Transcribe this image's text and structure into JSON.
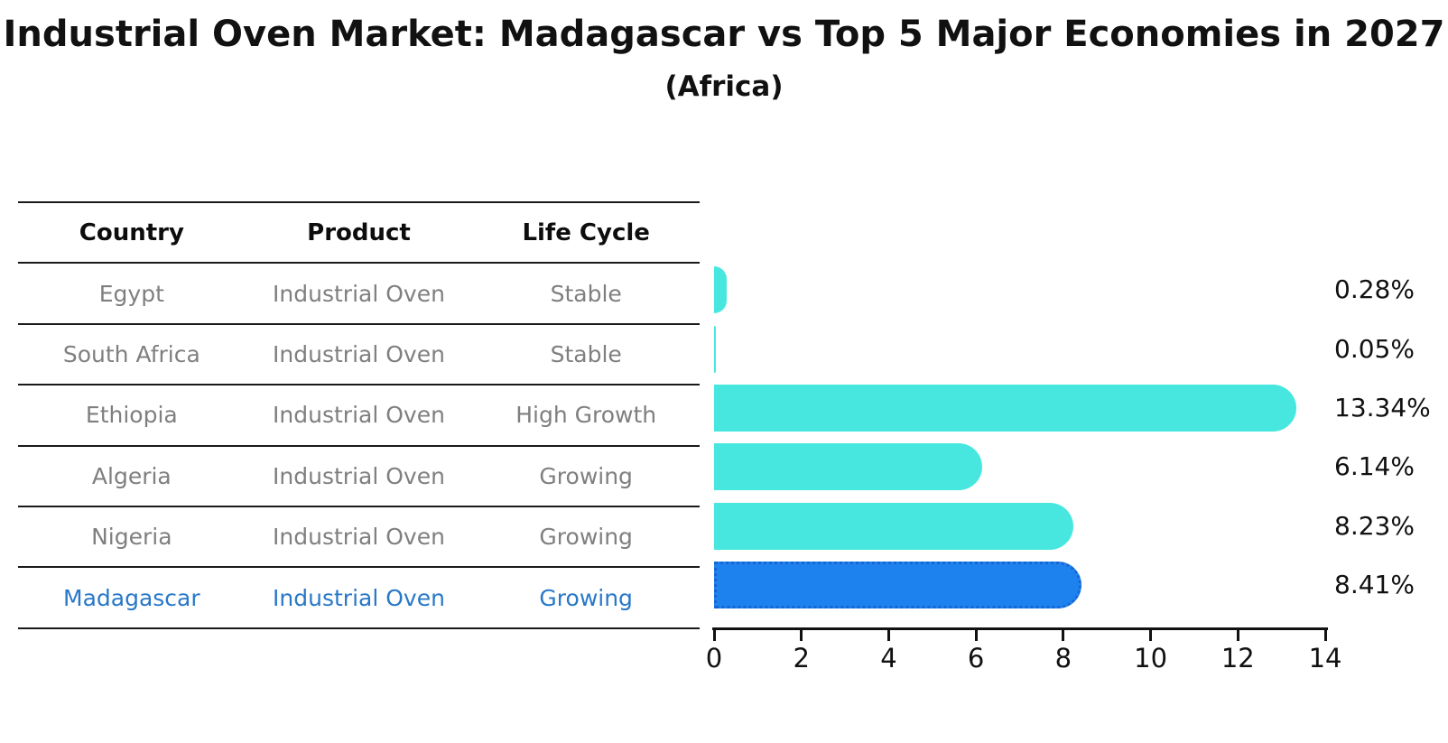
{
  "title": "Industrial Oven Market: Madagascar vs Top 5 Major Economies in 2027",
  "subtitle": "(Africa)",
  "table": {
    "columns": [
      "Country",
      "Product",
      "Life Cycle"
    ],
    "rows": [
      {
        "country": "Egypt",
        "product": "Industrial Oven",
        "life_cycle": "Stable",
        "highlight": false
      },
      {
        "country": "South Africa",
        "product": "Industrial Oven",
        "life_cycle": "Stable",
        "highlight": false
      },
      {
        "country": "Ethiopia",
        "product": "Industrial Oven",
        "life_cycle": "High Growth",
        "highlight": false
      },
      {
        "country": "Algeria",
        "product": "Industrial Oven",
        "life_cycle": "Growing",
        "highlight": false
      },
      {
        "country": "Nigeria",
        "product": "Industrial Oven",
        "life_cycle": "Growing",
        "highlight": true
      }
    ]
  },
  "highlight_row": {
    "country": "Madagascar",
    "product": "Industrial Oven",
    "life_cycle": "Growing"
  },
  "chart_data": {
    "type": "bar",
    "orientation": "horizontal",
    "categories": [
      "Egypt",
      "South Africa",
      "Ethiopia",
      "Algeria",
      "Nigeria",
      "Madagascar"
    ],
    "values": [
      0.28,
      0.05,
      13.34,
      6.14,
      8.23,
      8.41
    ],
    "value_labels": [
      "0.28%",
      "0.05%",
      "13.34%",
      "6.14%",
      "8.23%",
      "8.41%"
    ],
    "title": "Industrial Oven Market: Madagascar vs Top 5 Major Economies in 2027 (Africa)",
    "xlabel": "",
    "ylabel": "",
    "xlim": [
      0,
      14
    ],
    "x_ticks": [
      0,
      2,
      4,
      6,
      8,
      10,
      12,
      14
    ],
    "grid": false,
    "legend": "none",
    "bar_color": "#47e7e0",
    "highlight_color": "#1e82ee",
    "highlight_edge_color": "#1666d2",
    "highlight_index": 5,
    "highlight_edge_style": "dotted"
  },
  "colors": {
    "background": "#ffffff",
    "text_primary": "#111111",
    "text_muted": "#7f7f7f",
    "highlight_text": "#2878c8",
    "table_line": "#1a1a1a"
  }
}
